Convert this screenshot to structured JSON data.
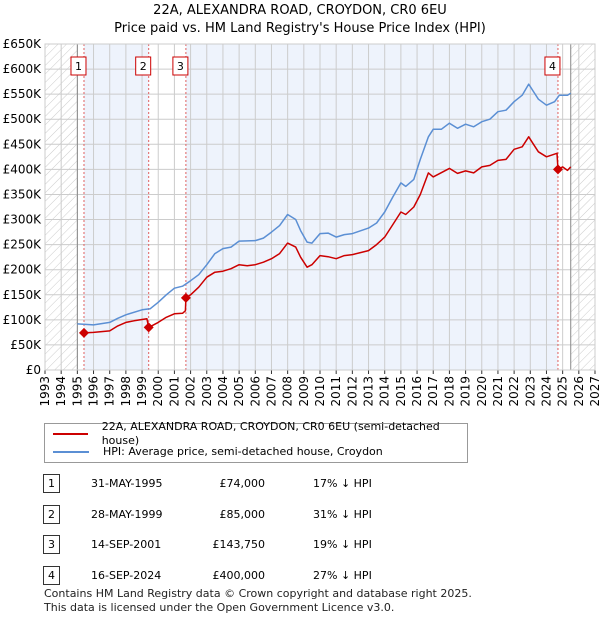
{
  "title": "22A, ALEXANDRA ROAD, CROYDON, CR0 6EU",
  "subtitle": "Price paid vs. HM Land Registry's House Price Index (HPI)",
  "chart_data": {
    "type": "line",
    "xlim": [
      1993,
      2027
    ],
    "ylim": [
      0,
      650000
    ],
    "yticks": [
      0,
      50000,
      100000,
      150000,
      200000,
      250000,
      300000,
      350000,
      400000,
      450000,
      500000,
      550000,
      600000,
      650000
    ],
    "ytick_labels": [
      "£0",
      "£50K",
      "£100K",
      "£150K",
      "£200K",
      "£250K",
      "£300K",
      "£350K",
      "£400K",
      "£450K",
      "£500K",
      "£550K",
      "£600K",
      "£650K"
    ],
    "xtick_labels": [
      "1993",
      "1994",
      "1995",
      "1996",
      "1997",
      "1998",
      "1999",
      "2000",
      "2001",
      "2002",
      "2003",
      "2004",
      "2005",
      "2006",
      "2007",
      "2008",
      "2009",
      "2010",
      "2011",
      "2012",
      "2013",
      "2014",
      "2015",
      "2016",
      "2017",
      "2018",
      "2019",
      "2020",
      "2021",
      "2022",
      "2023",
      "2024",
      "2025",
      "2026",
      "2027"
    ],
    "grid": true,
    "data_range": [
      1995,
      2025.5
    ],
    "series": [
      {
        "name": "22A, ALEXANDRA ROAD, CROYDON, CR0 6EU (semi-detached house)",
        "color": "#cc0000",
        "x": [
          1995.41,
          1996,
          1997,
          1997.5,
          1998,
          1998.5,
          1999.3,
          1999.41,
          2000,
          2000.5,
          2001,
          2001.5,
          2001.68,
          2001.71,
          2002,
          2002.5,
          2003,
          2003.5,
          2004,
          2004.5,
          2005,
          2005.5,
          2006,
          2006.5,
          2007,
          2007.5,
          2008,
          2008.5,
          2008.8,
          2009.2,
          2009.5,
          2010,
          2010.5,
          2011,
          2011.5,
          2012,
          2013,
          2013.5,
          2014,
          2014.5,
          2015,
          2015.3,
          2015.8,
          2016.2,
          2016.7,
          2017,
          2018,
          2018.5,
          2019,
          2019.5,
          2020,
          2020.5,
          2021,
          2021.5,
          2022,
          2022.5,
          2022.9,
          2023.2,
          2023.5,
          2024,
          2024.65,
          2024.71,
          2025,
          2025.3,
          2025.5
        ],
        "y": [
          74000,
          75000,
          78000,
          88000,
          95000,
          98000,
          102000,
          85000,
          95000,
          105000,
          112000,
          113000,
          118000,
          143750,
          150000,
          165000,
          185000,
          195000,
          197000,
          202000,
          210000,
          208000,
          210000,
          215000,
          222000,
          232000,
          253000,
          245000,
          225000,
          205000,
          210000,
          228000,
          226000,
          222000,
          228000,
          230000,
          238000,
          250000,
          265000,
          290000,
          315000,
          310000,
          325000,
          350000,
          393000,
          385000,
          402000,
          392000,
          397000,
          393000,
          405000,
          408000,
          418000,
          420000,
          440000,
          445000,
          465000,
          450000,
          435000,
          425000,
          432000,
          400000,
          405000,
          398000,
          405000
        ]
      },
      {
        "name": "HPI: Average price, semi-detached house, Croydon",
        "color": "#5b8fd4",
        "x": [
          1995,
          1996,
          1997,
          1997.5,
          1998,
          1999,
          1999.5,
          2000,
          2000.5,
          2001,
          2001.5,
          2002,
          2002.5,
          2003,
          2003.5,
          2004,
          2004.5,
          2005,
          2006,
          2006.5,
          2007,
          2007.5,
          2008,
          2008.5,
          2008.8,
          2009.2,
          2009.5,
          2010,
          2010.5,
          2011,
          2011.5,
          2012,
          2013,
          2013.5,
          2014,
          2014.5,
          2015,
          2015.3,
          2015.8,
          2016.2,
          2016.7,
          2017,
          2017.5,
          2018,
          2018.5,
          2019,
          2019.5,
          2020,
          2020.5,
          2021,
          2021.5,
          2022,
          2022.5,
          2022.9,
          2023.2,
          2023.5,
          2024,
          2024.5,
          2024.8,
          2025.3,
          2025.5
        ],
        "y": [
          92000,
          90000,
          95000,
          103000,
          110000,
          120000,
          122000,
          135000,
          150000,
          163000,
          167000,
          178000,
          190000,
          210000,
          232000,
          242000,
          245000,
          257000,
          258000,
          263000,
          275000,
          288000,
          310000,
          300000,
          278000,
          255000,
          253000,
          272000,
          273000,
          265000,
          270000,
          272000,
          283000,
          293000,
          315000,
          345000,
          373000,
          366000,
          380000,
          420000,
          465000,
          480000,
          480000,
          492000,
          482000,
          490000,
          485000,
          495000,
          500000,
          515000,
          518000,
          535000,
          548000,
          570000,
          555000,
          540000,
          528000,
          535000,
          548000,
          548000,
          552000
        ]
      }
    ],
    "annotations": [
      {
        "label": "1",
        "x": 1995.41,
        "y": 74000
      },
      {
        "label": "2",
        "x": 1999.41,
        "y": 85000
      },
      {
        "label": "3",
        "x": 2001.71,
        "y": 143750
      },
      {
        "label": "4",
        "x": 2024.71,
        "y": 400000
      }
    ]
  },
  "legend": [
    {
      "label": "22A, ALEXANDRA ROAD, CROYDON, CR0 6EU (semi-detached house)",
      "color": "#cc0000"
    },
    {
      "label": "HPI: Average price, semi-detached house, Croydon",
      "color": "#5b8fd4"
    }
  ],
  "transactions": [
    {
      "num": "1",
      "date": "31-MAY-1995",
      "price": "£74,000",
      "hpi": "17% ↓ HPI"
    },
    {
      "num": "2",
      "date": "28-MAY-1999",
      "price": "£85,000",
      "hpi": "31% ↓ HPI"
    },
    {
      "num": "3",
      "date": "14-SEP-2001",
      "price": "£143,750",
      "hpi": "19% ↓ HPI"
    },
    {
      "num": "4",
      "date": "16-SEP-2024",
      "price": "£400,000",
      "hpi": "27% ↓ HPI"
    }
  ],
  "footer": [
    "Contains HM Land Registry data © Crown copyright and database right 2025.",
    "This data is licensed under the Open Government Licence v3.0."
  ]
}
